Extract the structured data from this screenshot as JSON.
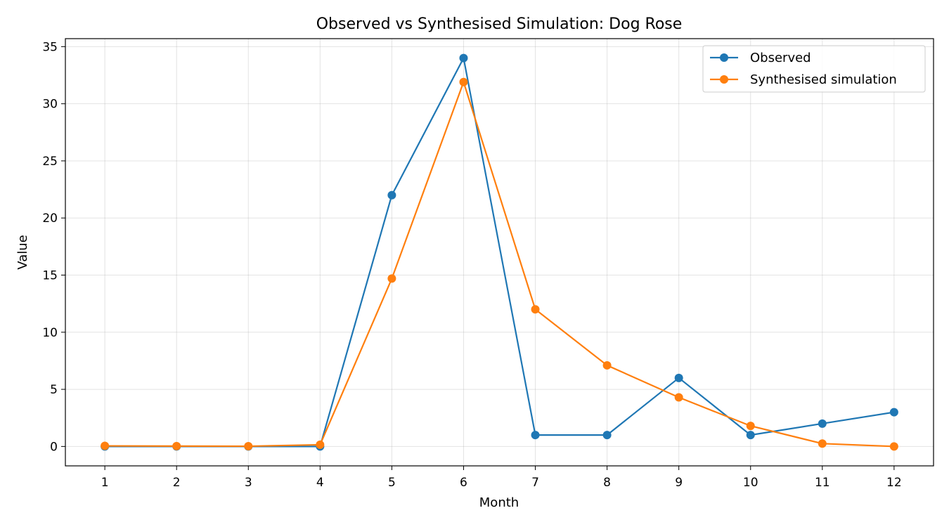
{
  "chart_data": {
    "type": "line",
    "title": "Observed vs Synthesised Simulation: Dog Rose",
    "xlabel": "Month",
    "ylabel": "Value",
    "x": [
      1,
      2,
      3,
      4,
      5,
      6,
      7,
      8,
      9,
      10,
      11,
      12
    ],
    "xticks": [
      "1",
      "2",
      "3",
      "4",
      "5",
      "6",
      "7",
      "8",
      "9",
      "10",
      "11",
      "12"
    ],
    "yticks": [
      "0",
      "5",
      "10",
      "15",
      "20",
      "25",
      "30",
      "35"
    ],
    "xlim": [
      0.45,
      12.55
    ],
    "ylim": [
      -1.7,
      35.7
    ],
    "grid": true,
    "legend_position": "top-right",
    "series": [
      {
        "name": "Observed",
        "color": "#1f77b4",
        "marker": "circle",
        "values": [
          0,
          0,
          0,
          0,
          22,
          34,
          1,
          1,
          6,
          1,
          2,
          3
        ]
      },
      {
        "name": "Synthesised simulation",
        "color": "#ff7f0e",
        "marker": "circle",
        "values": [
          0.05,
          0.03,
          0.02,
          0.15,
          14.7,
          31.9,
          12.0,
          7.1,
          4.3,
          1.8,
          0.25,
          0.0
        ]
      }
    ]
  }
}
